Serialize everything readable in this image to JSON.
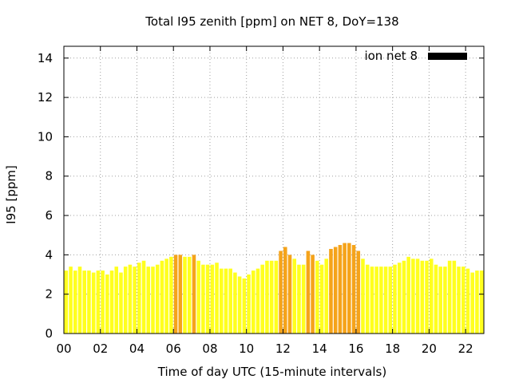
{
  "chart_data": {
    "type": "bar",
    "title": "Total I95 zenith [ppm] on NET 8, DoY=138",
    "xlabel": "Time of day UTC (15-minute intervals)",
    "ylabel": "I95 [ppm]",
    "legend": {
      "label": "ion net 8",
      "placement": "top-right",
      "color": "#000000"
    },
    "xlim": [
      0,
      23
    ],
    "ylim": [
      0,
      14.6
    ],
    "grid": true,
    "x_ticks": [
      "00",
      "02",
      "04",
      "06",
      "08",
      "10",
      "12",
      "14",
      "16",
      "18",
      "20",
      "22"
    ],
    "x_tick_values": [
      0,
      2,
      4,
      6,
      8,
      10,
      12,
      14,
      16,
      18,
      20,
      22
    ],
    "y_ticks": [
      "0",
      "2",
      "4",
      "6",
      "8",
      "10",
      "12",
      "14"
    ],
    "y_tick_values": [
      0,
      2,
      4,
      6,
      8,
      10,
      12,
      14
    ],
    "bar_interval_hours": 0.25,
    "colors": {
      "normal": "#ffff1e",
      "elevated": "#f5a31a",
      "threshold": 4.0
    },
    "values": [
      3.2,
      3.4,
      3.2,
      3.4,
      3.2,
      3.2,
      3.1,
      3.2,
      3.2,
      3.0,
      3.2,
      3.4,
      3.1,
      3.4,
      3.5,
      3.4,
      3.6,
      3.7,
      3.4,
      3.4,
      3.5,
      3.7,
      3.8,
      3.9,
      4.0,
      4.0,
      3.9,
      3.9,
      4.0,
      3.7,
      3.5,
      3.5,
      3.5,
      3.6,
      3.3,
      3.3,
      3.3,
      3.1,
      2.9,
      2.8,
      3.0,
      3.2,
      3.3,
      3.5,
      3.7,
      3.7,
      3.7,
      4.2,
      4.4,
      4.0,
      3.8,
      3.5,
      3.5,
      4.2,
      4.0,
      3.7,
      3.5,
      3.8,
      4.3,
      4.4,
      4.5,
      4.6,
      4.6,
      4.5,
      4.2,
      3.8,
      3.5,
      3.4,
      3.4,
      3.4,
      3.4,
      3.4,
      3.5,
      3.6,
      3.7,
      3.9,
      3.8,
      3.8,
      3.7,
      3.7,
      3.8,
      3.5,
      3.4,
      3.4,
      3.7,
      3.7,
      3.4,
      3.4,
      3.3,
      3.1,
      3.2,
      3.2
    ]
  }
}
